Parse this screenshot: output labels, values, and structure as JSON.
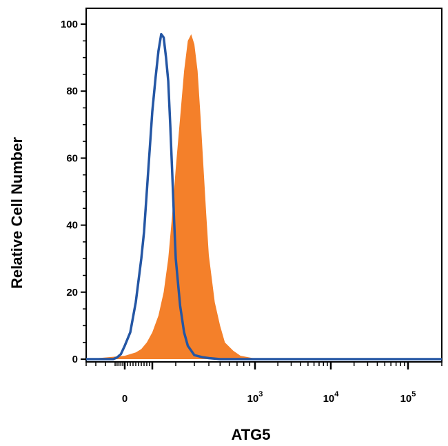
{
  "chart_data": {
    "type": "area",
    "title": "",
    "xlabel": "ATG5",
    "ylabel": "Relative Cell Number",
    "x_scale": "biexponential",
    "ylim": [
      0,
      100
    ],
    "y_ticks": [
      "0",
      "20",
      "40",
      "60",
      "80",
      "100"
    ],
    "x_ticks": [
      {
        "value": 0,
        "base": "0",
        "exp": ""
      },
      {
        "value": 1000,
        "base": "10",
        "exp": "3"
      },
      {
        "value": 10000,
        "base": "10",
        "exp": "4"
      },
      {
        "value": 100000,
        "base": "10",
        "exp": "5"
      }
    ],
    "grid": false,
    "legend": "none",
    "series": [
      {
        "style": "filled",
        "color": "#F4802A",
        "x": [
          -200,
          0,
          40,
          60,
          80,
          100,
          120,
          140,
          160,
          180,
          200,
          220,
          240,
          260,
          280,
          300,
          320,
          340,
          360,
          380,
          400,
          450,
          500,
          550,
          650,
          750,
          900,
          1100,
          1400,
          2000,
          200000
        ],
        "y": [
          0,
          1,
          2,
          3,
          5,
          8,
          13,
          20,
          30,
          43,
          57,
          72,
          86,
          95,
          97,
          94,
          86,
          72,
          57,
          43,
          31,
          17,
          10,
          5,
          2.5,
          1,
          0.5,
          0,
          0,
          0,
          0
        ]
      },
      {
        "style": "line",
        "color": "#2456A4",
        "x": [
          -200,
          -60,
          -40,
          -20,
          0,
          20,
          40,
          60,
          70,
          80,
          90,
          100,
          110,
          120,
          130,
          140,
          150,
          160,
          170,
          180,
          190,
          200,
          220,
          240,
          260,
          300,
          350,
          400,
          500,
          700,
          1000,
          200000
        ],
        "y": [
          0,
          0,
          0.5,
          1.5,
          4,
          8,
          17,
          30,
          38,
          50,
          62,
          74,
          84,
          92,
          97,
          96,
          90,
          83,
          70,
          56,
          42,
          30,
          16,
          8,
          4,
          1.2,
          0.6,
          0.3,
          0,
          0,
          0,
          0
        ]
      }
    ]
  }
}
